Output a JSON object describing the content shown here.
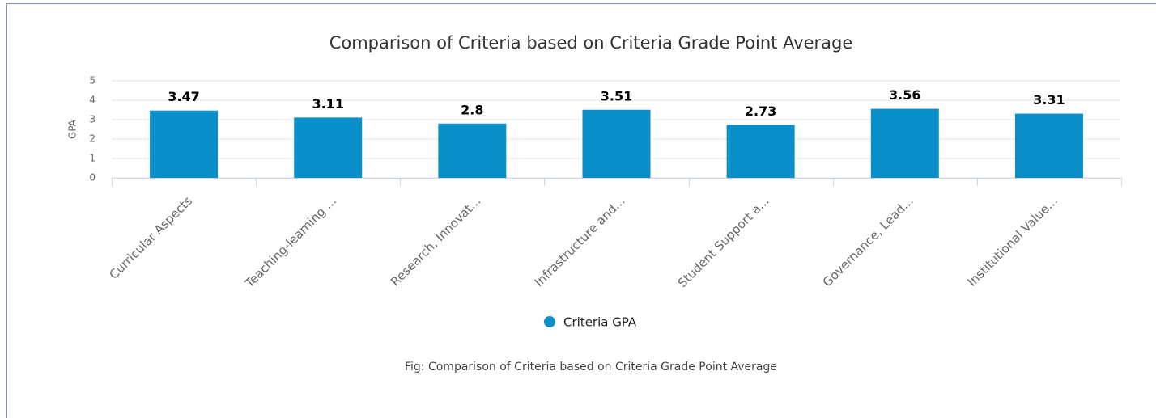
{
  "chart_data": {
    "type": "bar",
    "title": "Comparison of Criteria based on Criteria Grade Point Average",
    "ylabel": "GPA",
    "categories": [
      "Curricular Aspects",
      "Teaching-learning ...",
      "Research, Innovat...",
      "Infrastructure and...",
      "Student Support a...",
      "Governance, Lead...",
      "Institutional Value..."
    ],
    "series": [
      {
        "name": "Criteria GPA",
        "color": "#0a8fca",
        "values": [
          3.47,
          3.11,
          2.8,
          3.51,
          2.73,
          3.56,
          3.31
        ]
      }
    ],
    "ylim": [
      0,
      5
    ],
    "yticks": [
      0,
      1,
      2,
      3,
      4,
      5
    ],
    "grid": true,
    "legend": "bottom",
    "caption": "Fig: Comparison of Criteria based on Criteria Grade Point Average"
  }
}
